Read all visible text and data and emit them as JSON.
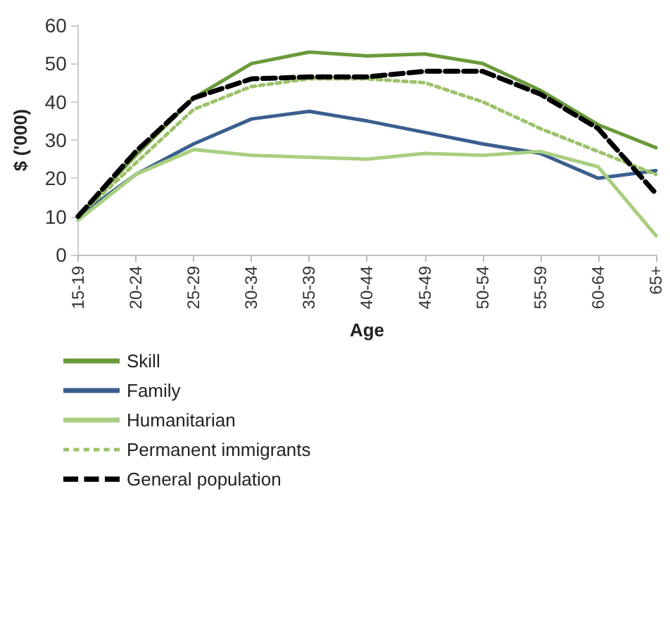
{
  "chart_data": {
    "type": "line",
    "xlabel": "Age",
    "ylabel": "$ ('000)",
    "categories": [
      "15-19",
      "20-24",
      "25-29",
      "30-34",
      "35-39",
      "40-44",
      "45-49",
      "50-54",
      "55-59",
      "60-64",
      "65+"
    ],
    "ylim": [
      0,
      60
    ],
    "yticks": [
      0,
      10,
      20,
      30,
      40,
      50,
      60
    ],
    "grid": false,
    "legend": "bottom",
    "marker": "none",
    "series": [
      {
        "name": "Skill",
        "color": "#6a9a3a",
        "line_style": "solid",
        "values": [
          10,
          26,
          41,
          50,
          53,
          52,
          52.5,
          50,
          43,
          34,
          28
        ]
      },
      {
        "name": "Family",
        "color": "#3a5f8f",
        "line_style": "solid",
        "values": [
          10,
          21,
          29,
          35.5,
          37.5,
          35,
          32,
          29,
          26.5,
          20,
          22
        ]
      },
      {
        "name": "Humanitarian",
        "color": "#a8cf80",
        "line_style": "solid",
        "values": [
          9,
          21,
          27.5,
          26,
          25.5,
          25,
          26.5,
          26,
          27,
          23,
          5
        ]
      },
      {
        "name": "Permanent immigrants",
        "color": "#9cc26a",
        "line_style": "dotted",
        "values": [
          10,
          24,
          38,
          44,
          46,
          46,
          45,
          40,
          33,
          27,
          21
        ]
      },
      {
        "name": "General population",
        "color": "#000000",
        "line_style": "dashed",
        "values": [
          10,
          27,
          41,
          46,
          46.5,
          46.5,
          48,
          48,
          42,
          33,
          16
        ]
      }
    ]
  }
}
